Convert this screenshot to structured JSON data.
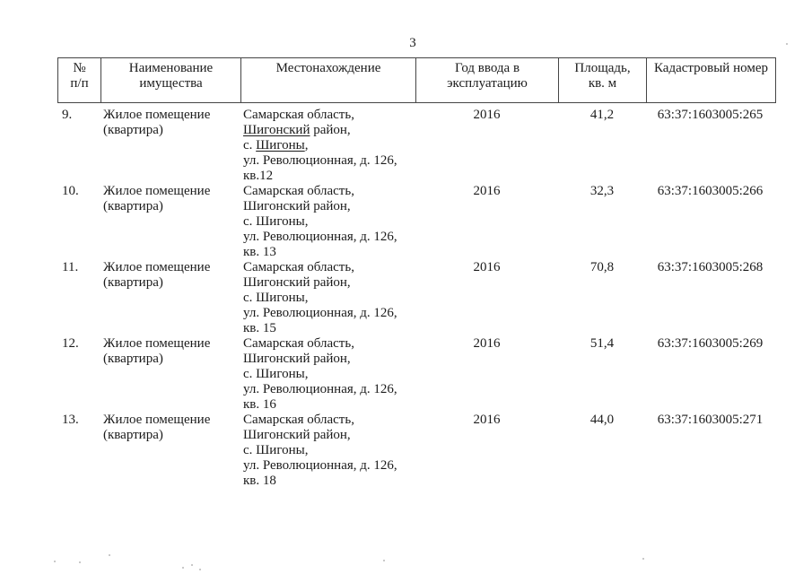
{
  "page": {
    "number": "3"
  },
  "table": {
    "headers": [
      {
        "id": "col-num",
        "lines": [
          "№",
          "п/п"
        ]
      },
      {
        "id": "col-name",
        "lines": [
          "Наименование",
          "имущества"
        ]
      },
      {
        "id": "col-location",
        "lines": [
          "Местонахождение"
        ]
      },
      {
        "id": "col-year",
        "lines": [
          "Год ввода в",
          "эксплуатацию"
        ]
      },
      {
        "id": "col-area",
        "lines": [
          "Площадь,",
          "кв. м"
        ]
      },
      {
        "id": "col-cadastral",
        "lines": [
          "Кадастровый номер"
        ]
      }
    ],
    "rows": [
      {
        "num": "9.",
        "name_lines": [
          "Жилое помещение",
          "(квартира)"
        ],
        "location_lines": [
          "Самарская область,",
          "Шигонский район,",
          "с. Шигоны,",
          "ул. Революционная, д. 126,",
          "кв.12"
        ],
        "underline_words": [
          "Шигонский",
          "Шигоны"
        ],
        "year": "2016",
        "area": "41,2",
        "cadastral_number": "63:37:1603005:265"
      },
      {
        "num": "10.",
        "name_lines": [
          "Жилое помещение",
          "(квартира)"
        ],
        "location_lines": [
          "Самарская область,",
          "Шигонский район,",
          "с. Шигоны,",
          "ул. Революционная, д. 126,",
          "кв. 13"
        ],
        "underline_words": [],
        "year": "2016",
        "area": "32,3",
        "cadastral_number": "63:37:1603005:266"
      },
      {
        "num": "11.",
        "name_lines": [
          "Жилое помещение",
          "(квартира)"
        ],
        "location_lines": [
          "Самарская область,",
          "Шигонский район,",
          "с. Шигоны,",
          "ул. Революционная, д. 126,",
          "кв. 15"
        ],
        "underline_words": [],
        "year": "2016",
        "area": "70,8",
        "cadastral_number": "63:37:1603005:268"
      },
      {
        "num": "12.",
        "name_lines": [
          "Жилое помещение",
          "(квартира)"
        ],
        "location_lines": [
          "Самарская область,",
          "Шигонский район,",
          "с. Шигоны,",
          "ул. Революционная, д. 126,",
          "кв. 16"
        ],
        "underline_words": [],
        "year": "2016",
        "area": "51,4",
        "cadastral_number": "63:37:1603005:269"
      },
      {
        "num": "13.",
        "name_lines": [
          "Жилое помещение",
          "(квартира)"
        ],
        "location_lines": [
          "Самарская область,",
          "Шигонский район,",
          "с. Шигоны,",
          "ул. Революционная, д. 126,",
          "кв. 18"
        ],
        "underline_words": [],
        "year": "2016",
        "area": "44,0",
        "cadastral_number": "63:37:1603005:271"
      }
    ]
  }
}
